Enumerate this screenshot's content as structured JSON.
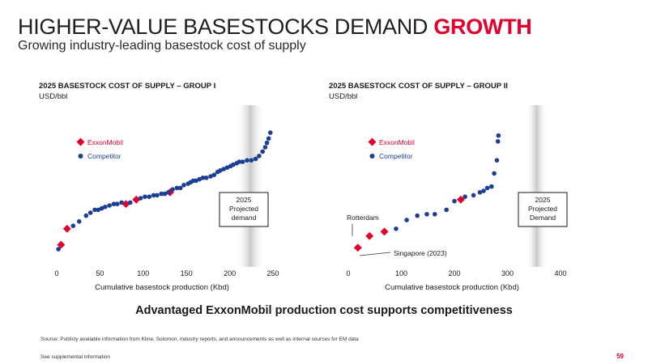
{
  "header": {
    "title_main": "HIGHER-VALUE BASESTOCKS DEMAND",
    "title_accent": "GROWTH",
    "subtitle": "Growing industry-leading basestock cost of supply"
  },
  "chart_data": [
    {
      "type": "scatter",
      "title": "2025 BASESTOCK COST OF SUPPLY – GROUP I",
      "ylabel": "USD/bbl",
      "xlabel": "Cumulative basestock production (Kbd)",
      "xlim": [
        0,
        250
      ],
      "xticks": [
        "0",
        "50",
        "100",
        "150",
        "200",
        "250"
      ],
      "ylim": [
        0,
        100
      ],
      "legend": [
        "ExxonMobil",
        "Competitor"
      ],
      "legend_colors": {
        "ExxonMobil": "#e4002b",
        "Competitor": "#1c3f94"
      },
      "annotation_box": "2025\nProjected\ndemand",
      "demand_band_x": [
        208,
        240
      ],
      "series": [
        {
          "name": "ExxonMobil",
          "marker": "diamond",
          "points": [
            [
              5,
              13
            ],
            [
              12,
              24
            ],
            [
              80,
              41
            ],
            [
              92,
              44
            ],
            [
              131,
              49
            ]
          ]
        },
        {
          "name": "Competitor",
          "marker": "circle",
          "points": [
            [
              2,
              10
            ],
            [
              19,
              26
            ],
            [
              26,
              29
            ],
            [
              34,
              33
            ],
            [
              39,
              35
            ],
            [
              44,
              37
            ],
            [
              48,
              37
            ],
            [
              52,
              38
            ],
            [
              56,
              39
            ],
            [
              61,
              40
            ],
            [
              66,
              41
            ],
            [
              70,
              41
            ],
            [
              75,
              42
            ],
            [
              85,
              42
            ],
            [
              97,
              45
            ],
            [
              102,
              46
            ],
            [
              107,
              46
            ],
            [
              112,
              47
            ],
            [
              116,
              47
            ],
            [
              121,
              48
            ],
            [
              125,
              48
            ],
            [
              129,
              49
            ],
            [
              134,
              51
            ],
            [
              139,
              52
            ],
            [
              143,
              52
            ],
            [
              147,
              54
            ],
            [
              152,
              55
            ],
            [
              155,
              56
            ],
            [
              158,
              57
            ],
            [
              161,
              57
            ],
            [
              165,
              58
            ],
            [
              169,
              59
            ],
            [
              173,
              59
            ],
            [
              178,
              60
            ],
            [
              182,
              61
            ],
            [
              186,
              63
            ],
            [
              189,
              64
            ],
            [
              193,
              65
            ],
            [
              197,
              66
            ],
            [
              201,
              67
            ],
            [
              204,
              68
            ],
            [
              208,
              69
            ],
            [
              211,
              70
            ],
            [
              215,
              70
            ],
            [
              220,
              71
            ],
            [
              225,
              71
            ],
            [
              230,
              72
            ],
            [
              234,
              74
            ],
            [
              238,
              77
            ],
            [
              241,
              80
            ],
            [
              243,
              83
            ],
            [
              245,
              86
            ],
            [
              247,
              90
            ]
          ]
        }
      ]
    },
    {
      "type": "scatter",
      "title": "2025 BASESTOCK COST OF SUPPLY – GROUP II",
      "ylabel": "USD/bbl",
      "xlabel": "Cumulative basestock production (Kbd)",
      "xlim": [
        0,
        400
      ],
      "xticks": [
        "0",
        "100",
        "200",
        "300",
        "400"
      ],
      "ylim": [
        0,
        100
      ],
      "legend": [
        "ExxonMobil",
        "Competitor"
      ],
      "legend_colors": {
        "ExxonMobil": "#e4002b",
        "Competitor": "#1c3f94"
      },
      "annotation_box": "2025\nProjected\nDemand",
      "demand_band_x": [
        335,
        375
      ],
      "annotations": [
        "Rotterdam",
        "Singapore (2023)"
      ],
      "series": [
        {
          "name": "ExxonMobil",
          "marker": "diamond",
          "points": [
            [
              18,
              11
            ],
            [
              40,
              19
            ],
            [
              68,
              22
            ],
            [
              212,
              44
            ]
          ]
        },
        {
          "name": "Competitor",
          "marker": "circle",
          "points": [
            [
              90,
              24
            ],
            [
              110,
              30
            ],
            [
              130,
              33
            ],
            [
              148,
              34
            ],
            [
              163,
              34
            ],
            [
              185,
              37
            ],
            [
              200,
              43
            ],
            [
              220,
              46
            ],
            [
              236,
              47
            ],
            [
              248,
              49
            ],
            [
              255,
              50
            ],
            [
              262,
              52
            ],
            [
              270,
              53
            ],
            [
              275,
              62
            ],
            [
              280,
              71
            ],
            [
              282,
              84
            ],
            [
              283,
              88
            ]
          ]
        }
      ]
    }
  ],
  "footer": {
    "tagline": "Advantaged ExxonMobil production cost supports competitiveness",
    "source": "Source: Publicly available information from Kline, Solomon, industry reports, and announcements as well as internal sources for EM data",
    "supplemental": "See supplemental information",
    "page_number": "59"
  }
}
